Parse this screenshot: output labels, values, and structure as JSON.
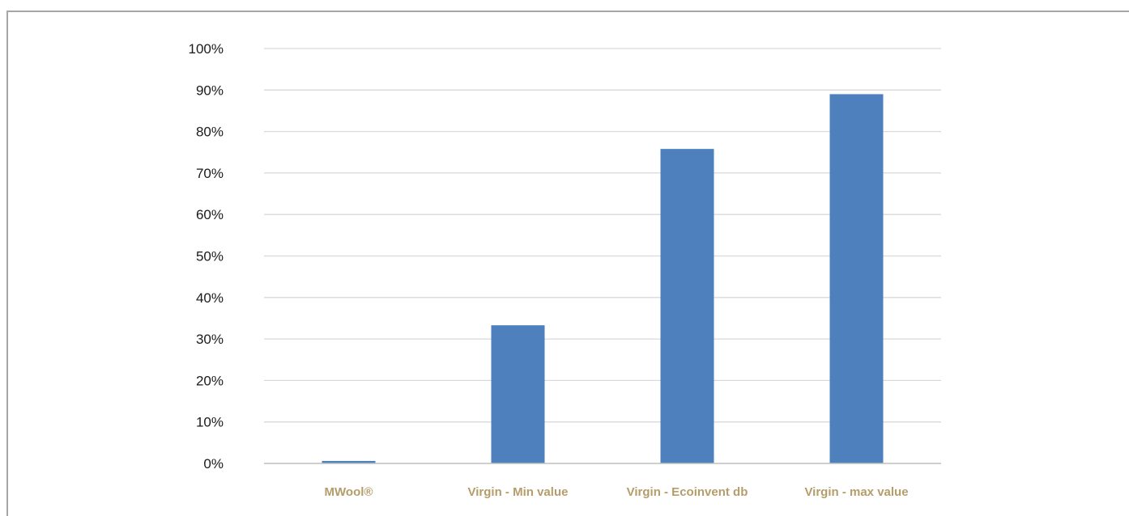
{
  "colors": {
    "bar": "#4e80bd",
    "grid": "#d9d9d9",
    "axis": "#bfbfbf",
    "category_label": "#b59d6a",
    "tick_label": "#1a1a1a",
    "frame": "#a6a6a6"
  },
  "chart_data": {
    "type": "bar",
    "categories": [
      "MWool®",
      "Virgin - Min value",
      "Virgin - Ecoinvent db",
      "Virgin - max value"
    ],
    "values": [
      0.6,
      33.3,
      75.8,
      89.0
    ],
    "yticks": [
      "0%",
      "10%",
      "20%",
      "30%",
      "40%",
      "50%",
      "60%",
      "70%",
      "80%",
      "90%",
      "100%"
    ],
    "ylim": [
      0,
      100
    ],
    "grid": true,
    "legend": "none"
  }
}
